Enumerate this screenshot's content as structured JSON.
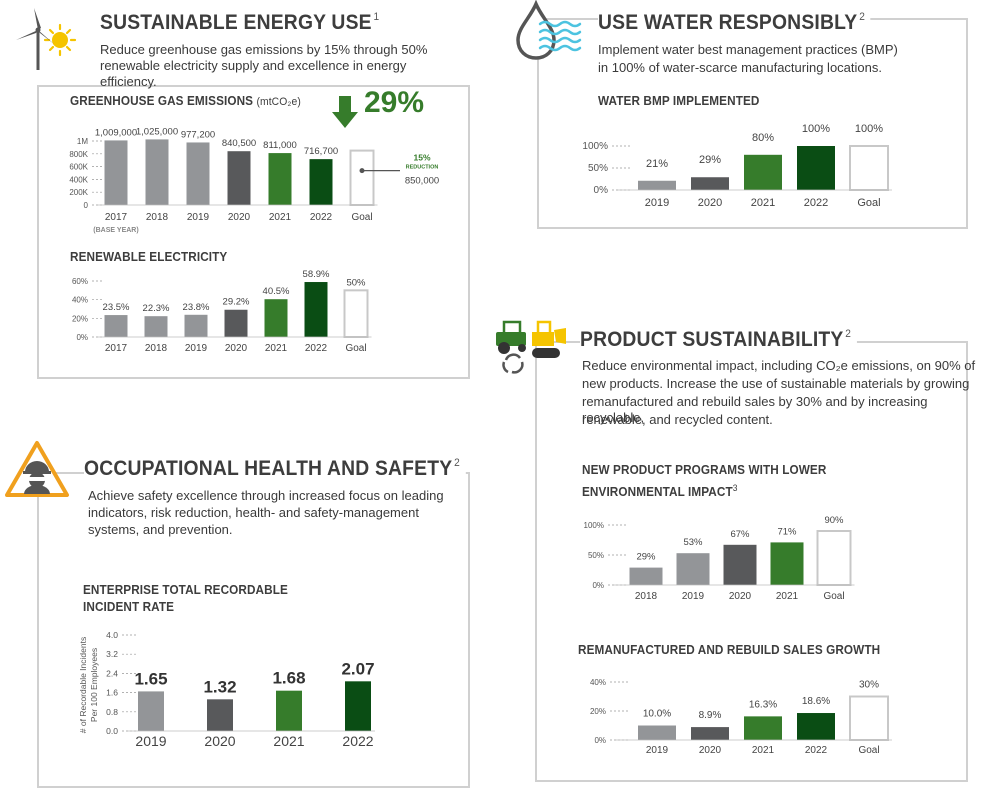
{
  "colors": {
    "gray_light": "#939598",
    "gray_mid": "#8c8e90",
    "gray_dark": "#58595b",
    "green": "#367c2b",
    "green_dark": "#0a4d14",
    "goal_fill": "#ffffff",
    "goal_stroke": "#c8c8c8",
    "frame": "#d0d0d0"
  },
  "energy": {
    "title": "SUSTAINABLE ENERGY USE",
    "title_sup": "1",
    "desc": "Reduce greenhouse gas emissions by 15% through 50% renewable electricity  supply and excellence in energy efficiency.",
    "ghg_title": "GREENHOUSE GAS EMISSIONS",
    "ghg_unit": "(mtCO₂e)",
    "ghg_big_pct": "29%",
    "reduction_pct": "15%",
    "reduction_label": "REDUCTION",
    "base_year": "(BASE YEAR)",
    "renew_title": "RENEWABLE ELECTRICITY"
  },
  "water": {
    "title": "USE WATER RESPONSIBLY",
    "title_sup": "2",
    "desc1": "Implement water best management practices (BMP)",
    "desc2": "in 100% of water-scarce manufacturing locations.",
    "chart_title": "WATER BMP IMPLEMENTED"
  },
  "product": {
    "title": "PRODUCT SUSTAINABILITY",
    "title_sup": "2",
    "desc1": "Reduce environmental impact, including CO₂e emissions, on 90% of",
    "desc2": "new products. Increase the use of sustainable materials by growing",
    "desc3": "remanufactured and rebuild sales by 30% and by increasing recyclable,",
    "desc4": "renewable, and recycled content.",
    "chart1_title_line1": "NEW PRODUCT PROGRAMS WITH LOWER",
    "chart1_title_line2": "ENVIRONMENTAL IMPACT",
    "chart1_sup": "3",
    "chart2_title": "REMANUFACTURED AND REBUILD SALES GROWTH"
  },
  "safety": {
    "title": "OCCUPATIONAL HEALTH AND SAFETY",
    "title_sup": "2",
    "desc1": "Achieve safety excellence through increased focus on leading",
    "desc2": "indicators, risk reduction, health- and safety-management",
    "desc3": "systems, and prevention.",
    "chart_title_line1": "ENTERPRISE TOTAL RECORDABLE",
    "chart_title_line2": "INCIDENT RATE",
    "y_label_line1": "# of Recordable Incidents",
    "y_label_line2": "Per 100 Employees"
  },
  "icons": {
    "energy": "wind-turbine-sun-icon",
    "water": "water-drop-waves-icon",
    "product": "tractor-recycle-icon",
    "safety": "worker-warning-icon",
    "arrow": "down-arrow-icon"
  },
  "chart_data": [
    {
      "id": "ghg",
      "type": "bar",
      "categories": [
        "2017",
        "2018",
        "2019",
        "2020",
        "2021",
        "2022",
        "Goal"
      ],
      "values": [
        1009000,
        1025000,
        977200,
        840500,
        811000,
        716700,
        850000
      ],
      "labels": [
        "1,009,000",
        "1,025,000",
        "977,200",
        "840,500",
        "811,000",
        "716,700",
        "850,000"
      ],
      "yticks": [
        "1M",
        "800K",
        "600K",
        "400K",
        "200K",
        "0"
      ],
      "ylim": [
        0,
        1000000
      ],
      "colors": [
        "#939598",
        "#939598",
        "#939598",
        "#58595b",
        "#367c2b",
        "#0a4d14",
        "goal"
      ]
    },
    {
      "id": "renew",
      "type": "bar",
      "categories": [
        "2017",
        "2018",
        "2019",
        "2020",
        "2021",
        "2022",
        "Goal"
      ],
      "values": [
        23.5,
        22.3,
        23.8,
        29.2,
        40.5,
        58.9,
        50
      ],
      "labels": [
        "23.5%",
        "22.3%",
        "23.8%",
        "29.2%",
        "40.5%",
        "58.9%",
        "50%"
      ],
      "yticks": [
        "60%",
        "40%",
        "20%",
        "0%"
      ],
      "ylim": [
        0,
        60
      ],
      "colors": [
        "#939598",
        "#939598",
        "#939598",
        "#58595b",
        "#367c2b",
        "#0a4d14",
        "goal"
      ]
    },
    {
      "id": "water",
      "type": "bar",
      "categories": [
        "2019",
        "2020",
        "2021",
        "2022",
        "Goal"
      ],
      "values": [
        21,
        29,
        80,
        100,
        100
      ],
      "labels": [
        "21%",
        "29%",
        "80%",
        "100%",
        "100%"
      ],
      "yticks": [
        "100%",
        "50%",
        "0%"
      ],
      "ylim": [
        0,
        100
      ],
      "colors": [
        "#939598",
        "#58595b",
        "#367c2b",
        "#0a4d14",
        "goal"
      ]
    },
    {
      "id": "newprod",
      "type": "bar",
      "categories": [
        "2018",
        "2019",
        "2020",
        "2021",
        "Goal"
      ],
      "values": [
        29,
        53,
        67,
        71,
        90
      ],
      "labels": [
        "29%",
        "53%",
        "67%",
        "71%",
        "90%"
      ],
      "yticks": [
        "100%",
        "50%",
        "0%"
      ],
      "ylim": [
        0,
        100
      ],
      "colors": [
        "#939598",
        "#939598",
        "#58595b",
        "#367c2b",
        "goal"
      ]
    },
    {
      "id": "reman",
      "type": "bar",
      "categories": [
        "2019",
        "2020",
        "2021",
        "2022",
        "Goal"
      ],
      "values": [
        10.0,
        8.9,
        16.3,
        18.6,
        30
      ],
      "labels": [
        "10.0%",
        "8.9%",
        "16.3%",
        "18.6%",
        "30%"
      ],
      "yticks": [
        "40%",
        "20%",
        "0%"
      ],
      "ylim": [
        0,
        40
      ],
      "colors": [
        "#939598",
        "#58595b",
        "#367c2b",
        "#0a4d14",
        "goal"
      ]
    },
    {
      "id": "trir",
      "type": "bar",
      "categories": [
        "2019",
        "2020",
        "2021",
        "2022"
      ],
      "values": [
        1.65,
        1.32,
        1.68,
        2.07
      ],
      "labels": [
        "1.65",
        "1.32",
        "1.68",
        "2.07"
      ],
      "yticks": [
        "4.0",
        "3.2",
        "2.4",
        "1.6",
        "0.8",
        "0.0"
      ],
      "ylim": [
        0,
        4.0
      ],
      "colors": [
        "#939598",
        "#58595b",
        "#367c2b",
        "#0a4d14"
      ]
    }
  ]
}
